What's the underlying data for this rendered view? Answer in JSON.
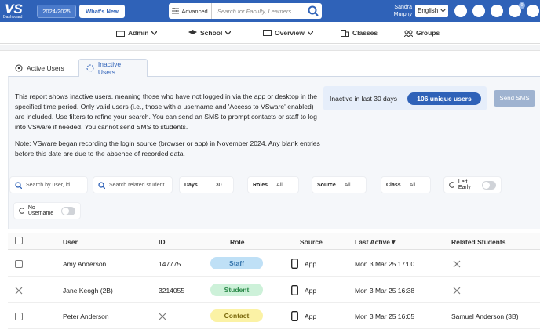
{
  "topbar": {
    "logo": "VS",
    "logo_sub": "Dashboard",
    "year": "2024/2025",
    "whats_new": "What's New",
    "search_mode": "Advanced",
    "search_placeholder": "Search for Faculty, Learners",
    "user": "Sandra Murphy",
    "language": "English",
    "mail_badge": "0"
  },
  "nav": [
    "Admin",
    "School",
    "Overview",
    "Classes",
    "Groups"
  ],
  "tabs": [
    "Active Users",
    "Inactive Users"
  ],
  "description": [
    "This report shows inactive users, meaning those who have not logged in via the app or desktop in the specified time period. Only valid users (i.e., those with a username and 'Access to VSware' enabled) are included. Use filters to refine your search. You can send an SMS to prompt contacts or staff to log into VSware if needed. You cannot send SMS to students.",
    "Note: VSware began recording the login source (browser or app) in November 2024. Any blank entries before this date are due to the absence of recorded data."
  ],
  "summary": {
    "label": "Inactive in last 30 days",
    "count": "106 unique users",
    "send": "Send SMS"
  },
  "filters": {
    "search_user": "Search by user, id",
    "search_student": "Search related student",
    "days_label": "Days",
    "days": "30",
    "roles_label": "Roles",
    "roles": "All",
    "source_label": "Source",
    "source": "All",
    "class_label": "Class",
    "class": "All",
    "left_early": "Left Early",
    "no_username": "No Username"
  },
  "table": {
    "headers": [
      "User",
      "ID",
      "Role",
      "Source",
      "Last Active▼",
      "Related Students"
    ],
    "rows": [
      {
        "name": "Amy Anderson",
        "id": "147775",
        "role": "Staff",
        "source": "App",
        "last_active": "Mon 3 Mar 25 17:00",
        "related": null
      },
      {
        "name": "Jane Keogh (2B)",
        "id": "3214055",
        "role": "Student",
        "source": "App",
        "last_active": "Mon 3 Mar 25 16:38",
        "related": null
      },
      {
        "name": "Peter Anderson",
        "id": null,
        "role": "Contact",
        "source": "App",
        "last_active": "Mon 3 Mar 25 16:05",
        "related": "Samuel Anderson (3B)"
      }
    ]
  }
}
